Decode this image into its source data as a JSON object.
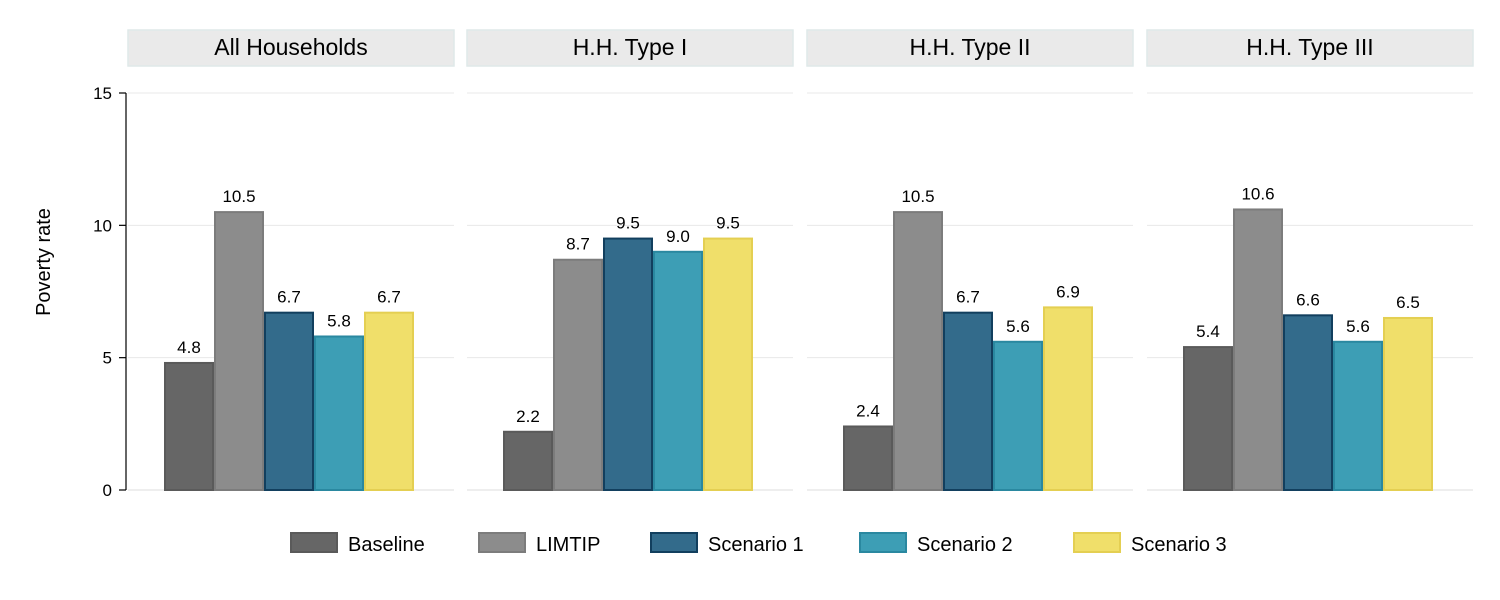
{
  "chart_data": {
    "type": "bar",
    "ylabel": "Poverty rate",
    "ylim": [
      0,
      15
    ],
    "yticks": [
      0,
      5,
      10,
      15
    ],
    "grid": true,
    "legend_position": "bottom",
    "panels": [
      {
        "title": "All Households",
        "values": [
          4.8,
          10.5,
          6.7,
          5.8,
          6.7
        ],
        "labels": [
          "4.8",
          "10.5",
          "6.7",
          "5.8",
          "6.7"
        ]
      },
      {
        "title": "H.H. Type I",
        "values": [
          2.2,
          8.7,
          9.5,
          9.0,
          9.5
        ],
        "labels": [
          "2.2",
          "8.7",
          "9.5",
          "9.0",
          "9.5"
        ]
      },
      {
        "title": "H.H. Type II",
        "values": [
          2.4,
          10.5,
          6.7,
          5.6,
          6.9
        ],
        "labels": [
          "2.4",
          "10.5",
          "6.7",
          "5.6",
          "6.9"
        ]
      },
      {
        "title": "H.H. Type III",
        "values": [
          5.4,
          10.6,
          6.6,
          5.6,
          6.5
        ],
        "labels": [
          "5.4",
          "10.6",
          "6.6",
          "5.6",
          "6.5"
        ]
      }
    ],
    "series": [
      {
        "name": "Baseline",
        "color": "#666666",
        "stroke": "#5a5a5a"
      },
      {
        "name": "LIMTIP",
        "color": "#8c8c8c",
        "stroke": "#7c7c7c"
      },
      {
        "name": "Scenario 1",
        "color": "#336b8b",
        "stroke": "#123f5e"
      },
      {
        "name": "Scenario 2",
        "color": "#3d9eb5",
        "stroke": "#2a88a0"
      },
      {
        "name": "Scenario 3",
        "color": "#f0df6a",
        "stroke": "#e4cf52"
      }
    ]
  }
}
